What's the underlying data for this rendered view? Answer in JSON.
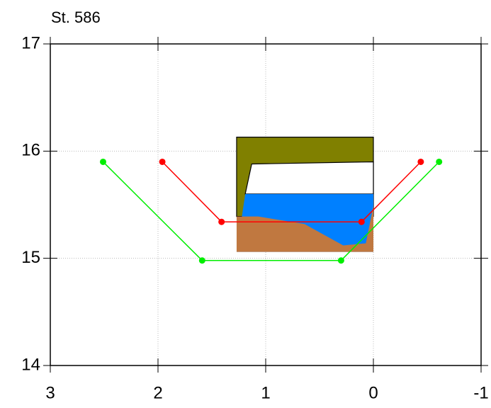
{
  "chart_data": {
    "type": "line",
    "title": "St. 586",
    "xlim": [
      3,
      -1
    ],
    "ylim": [
      14,
      17
    ],
    "xticks": [
      3,
      2,
      1,
      0,
      -1
    ],
    "yticks": [
      14,
      15,
      16,
      17
    ],
    "grid": true,
    "polygons": [
      {
        "color": "#808000",
        "outline": true,
        "x": [
          1.27,
          0,
          0,
          1.27
        ],
        "y": [
          16.13,
          16.13,
          15.39,
          15.39
        ]
      },
      {
        "color": "#ffffff",
        "outline": true,
        "x": [
          1.13,
          0,
          0,
          1.19
        ],
        "y": [
          15.88,
          15.9,
          15.6,
          15.6
        ]
      },
      {
        "color": "#0080ff",
        "outline": false,
        "x": [
          1.19,
          0,
          0,
          1.27
        ],
        "y": [
          15.6,
          15.6,
          15.06,
          15.06
        ]
      },
      {
        "color": "#c07840",
        "outline": false,
        "x": [
          1.27,
          1.07,
          0.64,
          0.28,
          0.07,
          0,
          0,
          1.27
        ],
        "y": [
          15.39,
          15.39,
          15.32,
          15.12,
          15.14,
          15.49,
          15.06,
          15.06
        ]
      }
    ],
    "series": [
      {
        "color": "#ff0000",
        "x": [
          1.96,
          1.41,
          0.11,
          -0.44
        ],
        "values": [
          15.9,
          15.34,
          15.34,
          15.9
        ]
      },
      {
        "color": "#00ee00",
        "x": [
          2.51,
          1.59,
          0.3,
          -0.61
        ],
        "values": [
          15.9,
          14.98,
          14.98,
          15.9
        ]
      }
    ]
  }
}
